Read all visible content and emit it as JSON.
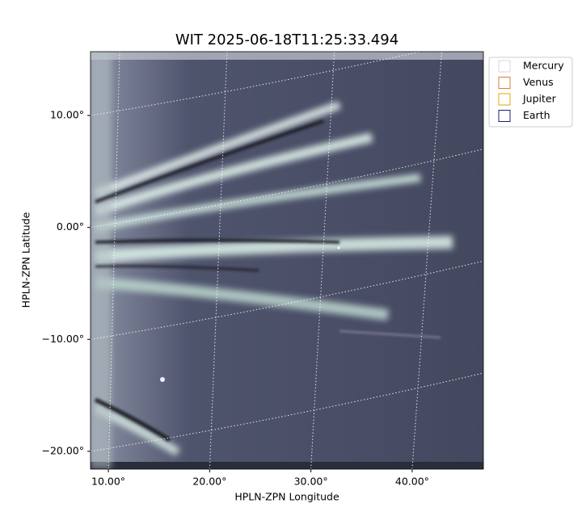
{
  "chart_data": {
    "type": "image",
    "title": "WIT 2025-06-18T11:25:33.494",
    "x_label": "HPLN-ZPN Longitude",
    "y_label": "HPLN-ZPN Latitude",
    "xlim": [
      8.24,
      47.03
    ],
    "ylim": [
      -21.59,
      15.7
    ],
    "xticks": [
      {
        "value": 10,
        "label": "10.00°"
      },
      {
        "value": 20,
        "label": "20.00°"
      },
      {
        "value": 30,
        "label": "30.00°"
      },
      {
        "value": 40,
        "label": "40.00°"
      }
    ],
    "yticks": [
      {
        "value": 10,
        "label": "10.00°"
      },
      {
        "value": 0,
        "label": "0.00°"
      },
      {
        "value": -10,
        "label": "−10.00°"
      },
      {
        "value": -20,
        "label": "−20.00°"
      }
    ],
    "grid": true,
    "legend": [
      {
        "name": "Mercury",
        "color": "#d9d9d9"
      },
      {
        "name": "Venus",
        "color": "#e07b39"
      },
      {
        "name": "Jupiter",
        "color": "#e0a800"
      },
      {
        "name": "Earth",
        "color": "#1c1c7a"
      }
    ]
  }
}
